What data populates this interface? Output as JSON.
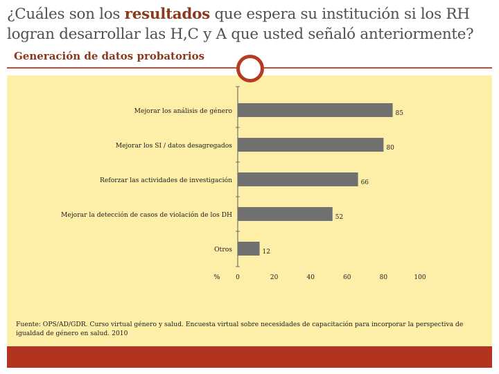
{
  "slide": {
    "title_before": "¿Cuáles son los ",
    "title_bold": "resultados",
    "title_after": " que espera su institución si los RH logran desarrollar las H,C y A que  usted señaló anteriormente?",
    "subtitle": "Generación de datos probatorios",
    "source": "Fuente: OPS/AD/GDR. Curso virtual género y salud. Encuesta virtual sobre necesidades de capacitación para incorporar la perspectiva de igualdad de género en salud. 2010"
  },
  "colors": {
    "bar": "#707070",
    "panel": "#fdeea8",
    "accent": "#b63b22",
    "title_bold": "#8a3a1e"
  },
  "chart_data": {
    "type": "bar",
    "orientation": "horizontal",
    "categories": [
      "Mejorar los análisis de género",
      "Mejorar los SI / datos desagregados",
      "Reforzar las actividades de investigación",
      "Mejorar la detección de casos de violación de los DH",
      "Otros"
    ],
    "values": [
      85,
      80,
      66,
      52,
      12
    ],
    "value_labels": [
      "85",
      "80",
      "66",
      "52",
      "12"
    ],
    "xlabel": "%",
    "xticks": [
      0,
      20,
      40,
      60,
      80,
      100
    ],
    "xtick_labels": [
      "0",
      "20",
      "40",
      "60",
      "80",
      "100"
    ],
    "xlim": [
      0,
      100
    ],
    "grid": false
  }
}
